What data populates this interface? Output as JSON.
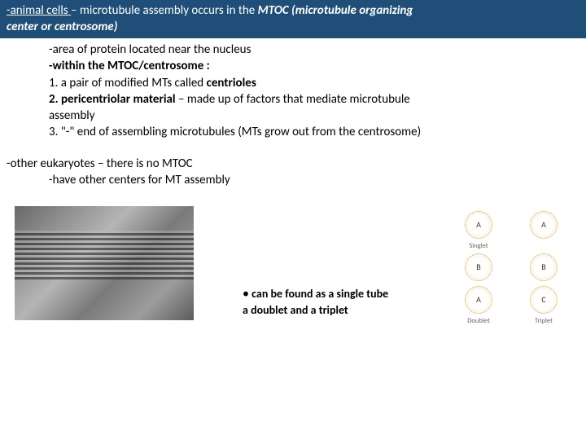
{
  "header": {
    "line1_part1": " -animal cells ",
    "line1_part2": "– microtubule assembly occurs in the ",
    "line1_part3": "MTOC (microtubule organizing",
    "line2": "center or centrosome)"
  },
  "body": {
    "l1": "-area of protein located near the nucleus",
    "l2": "-within the MTOC/centrosome :",
    "l3a": "1. a pair of modified MTs   called ",
    "l3b": "centrioles",
    "l4a": "2. pericentriolar material ",
    "l4b": "– made up of factors that mediate microtubule",
    "l5": "assembly",
    "l6": "3. \"-\" end of assembling microtubules (MTs grow out from the centrosome)"
  },
  "section2": {
    "l1": "-other eukaryotes – there is no MTOC",
    "l2": "-have other centers for MT assembly"
  },
  "caption": {
    "bullet": "•",
    "line1": "can be found as a single tube",
    "line2": "a doublet and a triplet"
  },
  "diagram": {
    "A": "A",
    "B": "B",
    "C": "C",
    "singlet": "Singlet",
    "doublet": "Doublet",
    "triplet": "Triplet"
  },
  "colors": {
    "header_bg": "#1f4e79",
    "header_text": "#ffffff",
    "body_text": "#000000",
    "ring_color": "#d4a23a"
  }
}
